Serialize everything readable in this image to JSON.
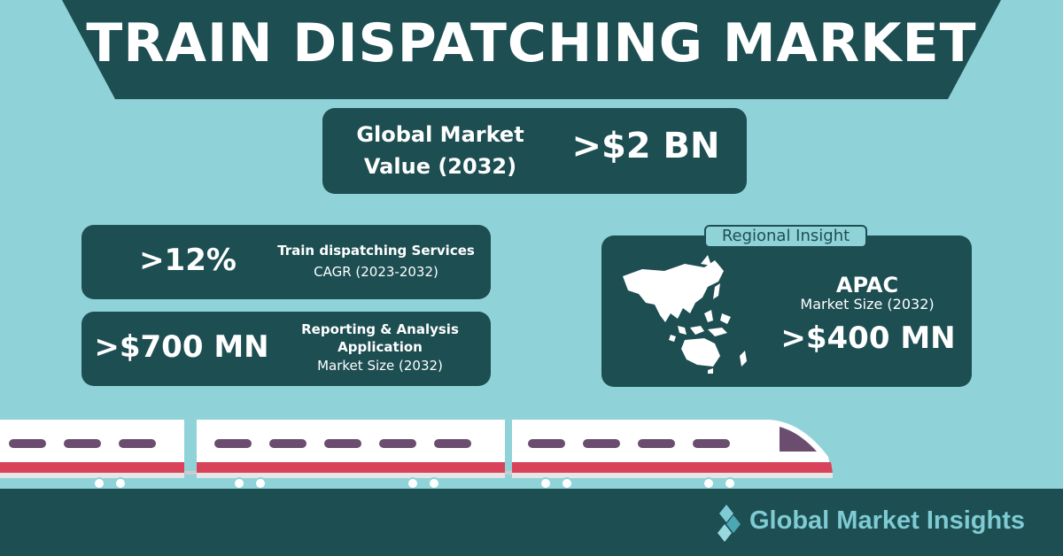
{
  "title": "TRAIN DISPATCHING MARKET",
  "global": {
    "label": "Global Market Value (2032)",
    "value": ">$2 BN"
  },
  "cagr": {
    "value": ">12%",
    "title": "Train dispatching Services",
    "sub": "CAGR (2023-2032)"
  },
  "report": {
    "value": ">$700 MN",
    "title": "Reporting & Analysis Application",
    "sub": "Market Size (2032)"
  },
  "regional": {
    "tag": "Regional Insight",
    "region": "APAC",
    "sub": "Market Size (2032)",
    "value": ">$400 MN"
  },
  "brand": {
    "name": "Global Market Insights"
  },
  "colors": {
    "dark": "#1d4e52",
    "background": "#8fd3d9",
    "accent_red": "#d9435a",
    "accent_purple": "#6b4d6f"
  },
  "icons": {
    "map": "apac-map-icon",
    "train": "train-illustration",
    "logo": "diamond-logo-icon"
  }
}
